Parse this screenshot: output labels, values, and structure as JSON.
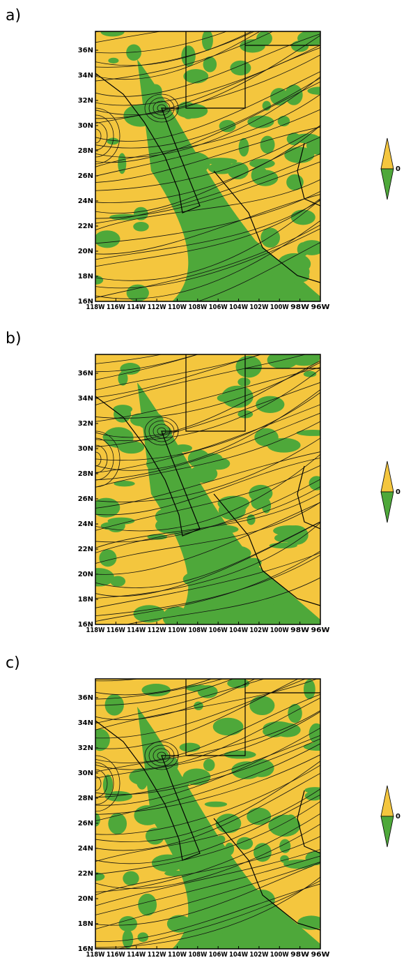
{
  "panels": [
    {
      "label": "a)"
    },
    {
      "label": "b)"
    },
    {
      "label": "c)"
    }
  ],
  "lat_labels": [
    "16N",
    "18N",
    "20N",
    "22N",
    "24N",
    "26N",
    "28N",
    "30N",
    "32N",
    "34N",
    "36N"
  ],
  "lon_labels": [
    "118W",
    "116W",
    "114W",
    "112W",
    "110W",
    "108W",
    "106W",
    "104W",
    "102W",
    "100W",
    "98W",
    "96W"
  ],
  "legend_label": "0"
}
